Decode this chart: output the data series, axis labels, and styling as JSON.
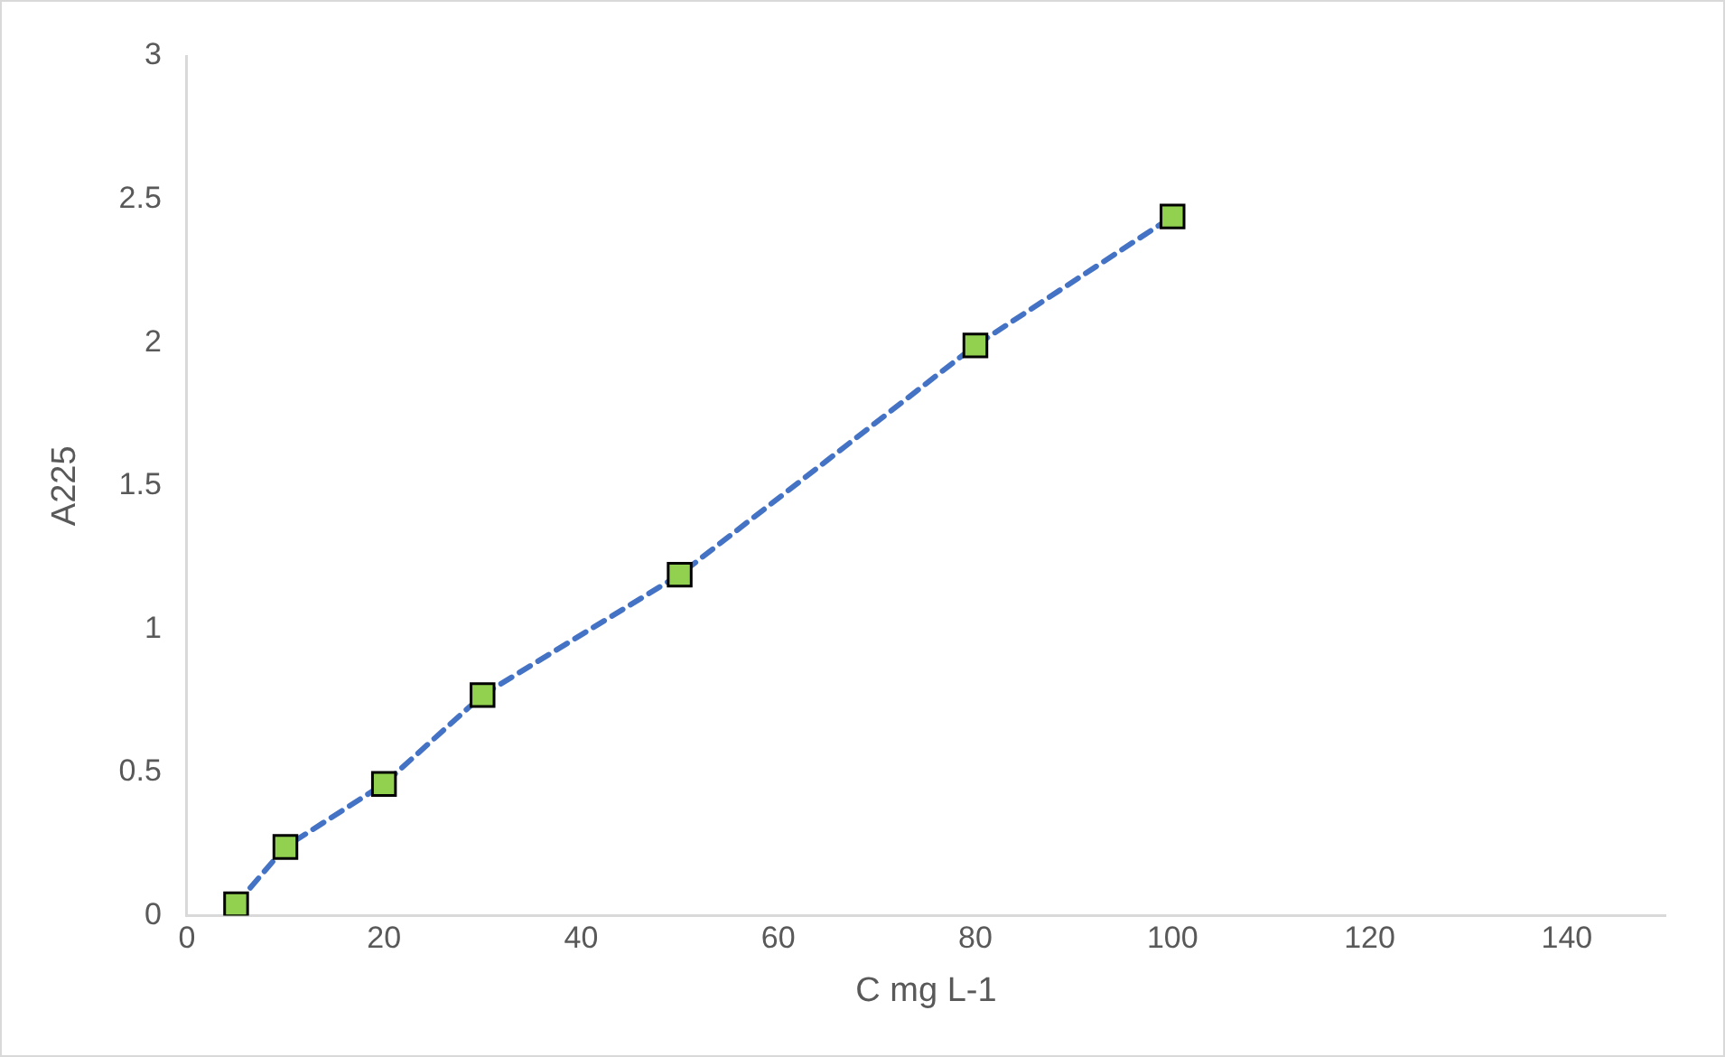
{
  "chart_data": {
    "type": "scatter",
    "xlabel": "C mg L-1",
    "ylabel": "A225",
    "x": [
      5,
      10,
      20,
      30,
      50,
      80,
      100
    ],
    "series": [
      {
        "type": "line",
        "color": "#4472c4",
        "marker": "none",
        "line_style": "dashed",
        "values": [
          0.04,
          0.24,
          0.46,
          0.77,
          1.19,
          1.99,
          2.44
        ]
      },
      {
        "type": "scatter",
        "color": "#92d050",
        "values": [
          0.04,
          0.24,
          0.46,
          0.77,
          1.19,
          1.99,
          2.44
        ]
      }
    ],
    "xlim": [
      0,
      150
    ],
    "xticks": [
      0,
      20,
      40,
      60,
      80,
      100,
      120,
      140
    ],
    "ylim": [
      0,
      3
    ],
    "yticks": [
      0,
      0.5,
      1,
      1.5,
      2,
      2.5,
      3
    ],
    "grid": false,
    "legend": false,
    "marker": "square"
  }
}
